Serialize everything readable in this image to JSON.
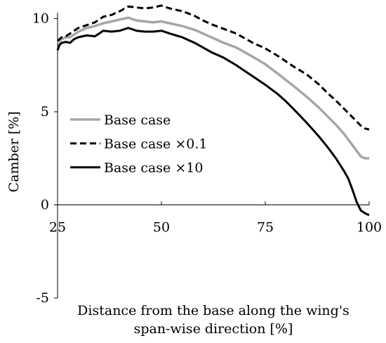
{
  "chart_data": {
    "type": "line",
    "title": "",
    "xlabel_lines": [
      "Distance from the base along the wing's",
      "span-wise direction [%]"
    ],
    "ylabel": "Camber [%]",
    "xlim": [
      25,
      100
    ],
    "ylim": [
      -5,
      11
    ],
    "xticks": [
      25,
      50,
      75,
      100
    ],
    "yticks": [
      10,
      5,
      0,
      -5
    ],
    "x_tick_labels": [
      "25",
      "50",
      "75",
      "100"
    ],
    "y_tick_labels": [
      "10",
      "5",
      "0",
      "-5"
    ],
    "grid": false,
    "legend_position": "center-left",
    "series": [
      {
        "name": "Base case",
        "color": "#a6a6a6",
        "dash": "solid",
        "x": [
          25,
          26,
          27,
          28,
          30,
          32,
          34,
          36,
          38,
          40,
          42,
          44,
          46,
          48,
          50,
          52,
          55,
          58,
          60,
          62,
          65,
          68,
          70,
          72,
          75,
          78,
          80,
          82,
          85,
          88,
          90,
          92,
          94,
          96,
          98,
          99,
          100
        ],
        "y": [
          8.7,
          8.9,
          9.0,
          9.0,
          9.3,
          9.5,
          9.6,
          9.75,
          9.85,
          9.95,
          10.05,
          9.9,
          9.85,
          9.8,
          9.85,
          9.75,
          9.6,
          9.4,
          9.2,
          9.0,
          8.7,
          8.45,
          8.2,
          7.95,
          7.55,
          7.05,
          6.7,
          6.35,
          5.8,
          5.2,
          4.75,
          4.3,
          3.8,
          3.2,
          2.6,
          2.5,
          2.5
        ]
      },
      {
        "name": "Base case ×0.1",
        "color": "#000000",
        "dash": "dashed",
        "x": [
          25,
          26,
          27,
          28,
          30,
          32,
          34,
          36,
          38,
          40,
          42,
          44,
          46,
          48,
          50,
          52,
          55,
          58,
          60,
          62,
          65,
          68,
          70,
          72,
          75,
          78,
          80,
          82,
          85,
          88,
          90,
          92,
          94,
          96,
          98,
          99,
          100
        ],
        "y": [
          8.8,
          9.0,
          9.05,
          9.2,
          9.5,
          9.65,
          9.8,
          10.1,
          10.2,
          10.4,
          10.65,
          10.6,
          10.55,
          10.6,
          10.7,
          10.55,
          10.4,
          10.15,
          9.9,
          9.7,
          9.45,
          9.2,
          8.95,
          8.7,
          8.4,
          8.0,
          7.7,
          7.4,
          7.0,
          6.45,
          6.0,
          5.6,
          5.15,
          4.7,
          4.25,
          4.1,
          4.05
        ]
      },
      {
        "name": "Base case ×10",
        "color": "#000000",
        "dash": "solid",
        "x": [
          25,
          25.5,
          26,
          27,
          28,
          29,
          30,
          32,
          34,
          35,
          36,
          38,
          40,
          42,
          44,
          46,
          48,
          50,
          52,
          55,
          58,
          60,
          62,
          65,
          68,
          70,
          72,
          75,
          78,
          80,
          82,
          85,
          88,
          90,
          92,
          94,
          95,
          96,
          97,
          98,
          99,
          100
        ],
        "y": [
          8.3,
          8.6,
          8.7,
          8.75,
          8.7,
          8.9,
          9.0,
          9.1,
          9.05,
          9.2,
          9.35,
          9.3,
          9.35,
          9.5,
          9.35,
          9.3,
          9.3,
          9.35,
          9.2,
          9.0,
          8.7,
          8.45,
          8.2,
          7.9,
          7.5,
          7.2,
          6.9,
          6.45,
          5.95,
          5.55,
          5.1,
          4.4,
          3.65,
          3.1,
          2.5,
          1.8,
          1.4,
          0.8,
          0.15,
          -0.3,
          -0.45,
          -0.55
        ]
      }
    ]
  }
}
